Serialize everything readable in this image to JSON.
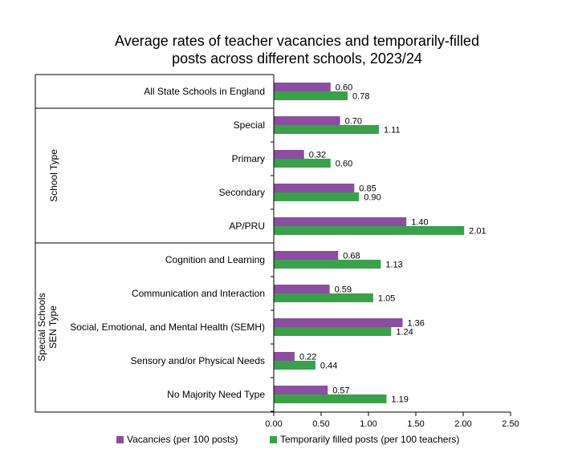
{
  "chart_data": {
    "type": "bar",
    "orientation": "horizontal",
    "title_lines": [
      "Average rates of teacher vacancies and temporarily-filled",
      "posts across different schools, 2023/24"
    ],
    "categories": [
      "All State Schools in England",
      "Special",
      "Primary",
      "Secondary",
      "AP/PRU",
      "Cognition and Learning",
      "Communication and Interaction",
      "Social, Emotional, and Mental Health (SEMH)",
      "Sensory and/or Physical Needs",
      "No Majority Need Type"
    ],
    "groups": [
      {
        "label_lines": [],
        "categories": [
          "All State Schools in England"
        ]
      },
      {
        "label_lines": [
          "School Type"
        ],
        "categories": [
          "Special",
          "Primary",
          "Secondary",
          "AP/PRU"
        ]
      },
      {
        "label_lines": [
          "Special Schools",
          "SEN Type"
        ],
        "categories": [
          "Cognition and Learning",
          "Communication and Interaction",
          "Social, Emotional, and Mental Health (SEMH)",
          "Sensory and/or Physical Needs",
          "No Majority Need Type"
        ]
      }
    ],
    "series": [
      {
        "name": "Vacancies (per 100 posts)",
        "color": "#8b4ea0",
        "values": [
          0.6,
          0.7,
          0.32,
          0.85,
          1.4,
          0.68,
          0.59,
          1.36,
          0.22,
          0.57
        ],
        "labels": [
          "0.60",
          "0.70",
          "0.32",
          "0.85",
          "1.40",
          "0.68",
          "0.59",
          "1.36",
          "0.22",
          "0.57"
        ]
      },
      {
        "name": "Temporarily filled posts (per 100 teachers)",
        "color": "#3aa14a",
        "values": [
          0.78,
          1.11,
          0.6,
          0.9,
          2.01,
          1.13,
          1.05,
          1.24,
          0.44,
          1.19
        ],
        "labels": [
          "0.78",
          "1.11",
          "0.60",
          "0.90",
          "2.01",
          "1.13",
          "1.05",
          "1.24",
          "0.44",
          "1.19"
        ]
      }
    ],
    "xlim": [
      0,
      2.5
    ],
    "xticks": [
      "0.00",
      "0.50",
      "1.00",
      "1.50",
      "2.00",
      "2.50"
    ],
    "grid": false,
    "legend_position": "bottom"
  }
}
